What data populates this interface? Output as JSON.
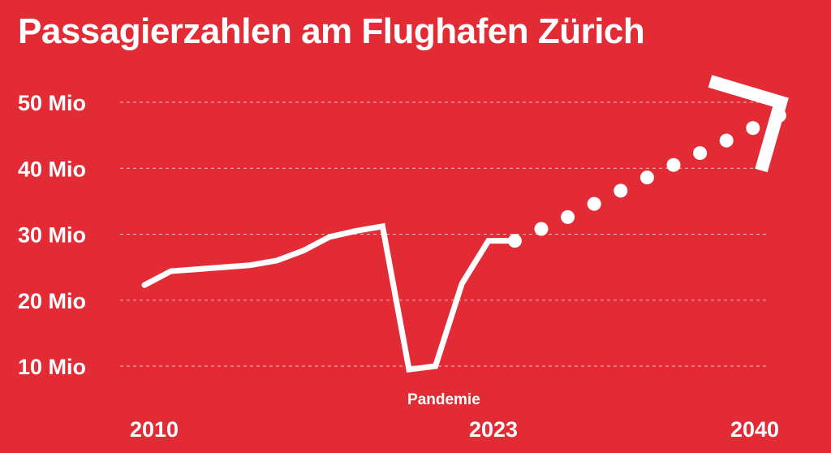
{
  "colors": {
    "background": "#e32b36",
    "foreground": "#ffffff"
  },
  "chart_data": {
    "type": "line",
    "title": "Passagierzahlen am Flughafen Zürich",
    "y_tick_labels": [
      "10 Mio",
      "20 Mio",
      "30 Mio",
      "40 Mio",
      "50 Mio"
    ],
    "y_tick_values": [
      10,
      20,
      30,
      40,
      50
    ],
    "x_tick_labels": [
      "2010",
      "2023",
      "2040"
    ],
    "x_tick_values": [
      2010,
      2023,
      2040
    ],
    "ylim": [
      10,
      50
    ],
    "xlim": [
      2010,
      2040
    ],
    "grid": true,
    "series": [
      {
        "style": "solid",
        "x": [
          2009,
          2010,
          2011,
          2012,
          2013,
          2014,
          2015,
          2016,
          2017,
          2018,
          2019,
          2020,
          2021,
          2022,
          2023
        ],
        "y": [
          22.3,
          24.4,
          24.7,
          25,
          25.3,
          26,
          27.5,
          29.6,
          30.5,
          31.2,
          9.5,
          10,
          22.5,
          29,
          29
        ]
      },
      {
        "style": "dotted",
        "x": [
          2023,
          2024,
          2025,
          2026,
          2027,
          2028,
          2029,
          2030,
          2031,
          2032,
          2033
        ],
        "y": [
          29,
          30.8,
          32.6,
          34.6,
          36.6,
          38.6,
          40.5,
          42.3,
          44.2,
          46.1,
          48
        ]
      }
    ],
    "annotations": [
      {
        "text": "Pandemie",
        "x": 2020.5
      }
    ]
  }
}
